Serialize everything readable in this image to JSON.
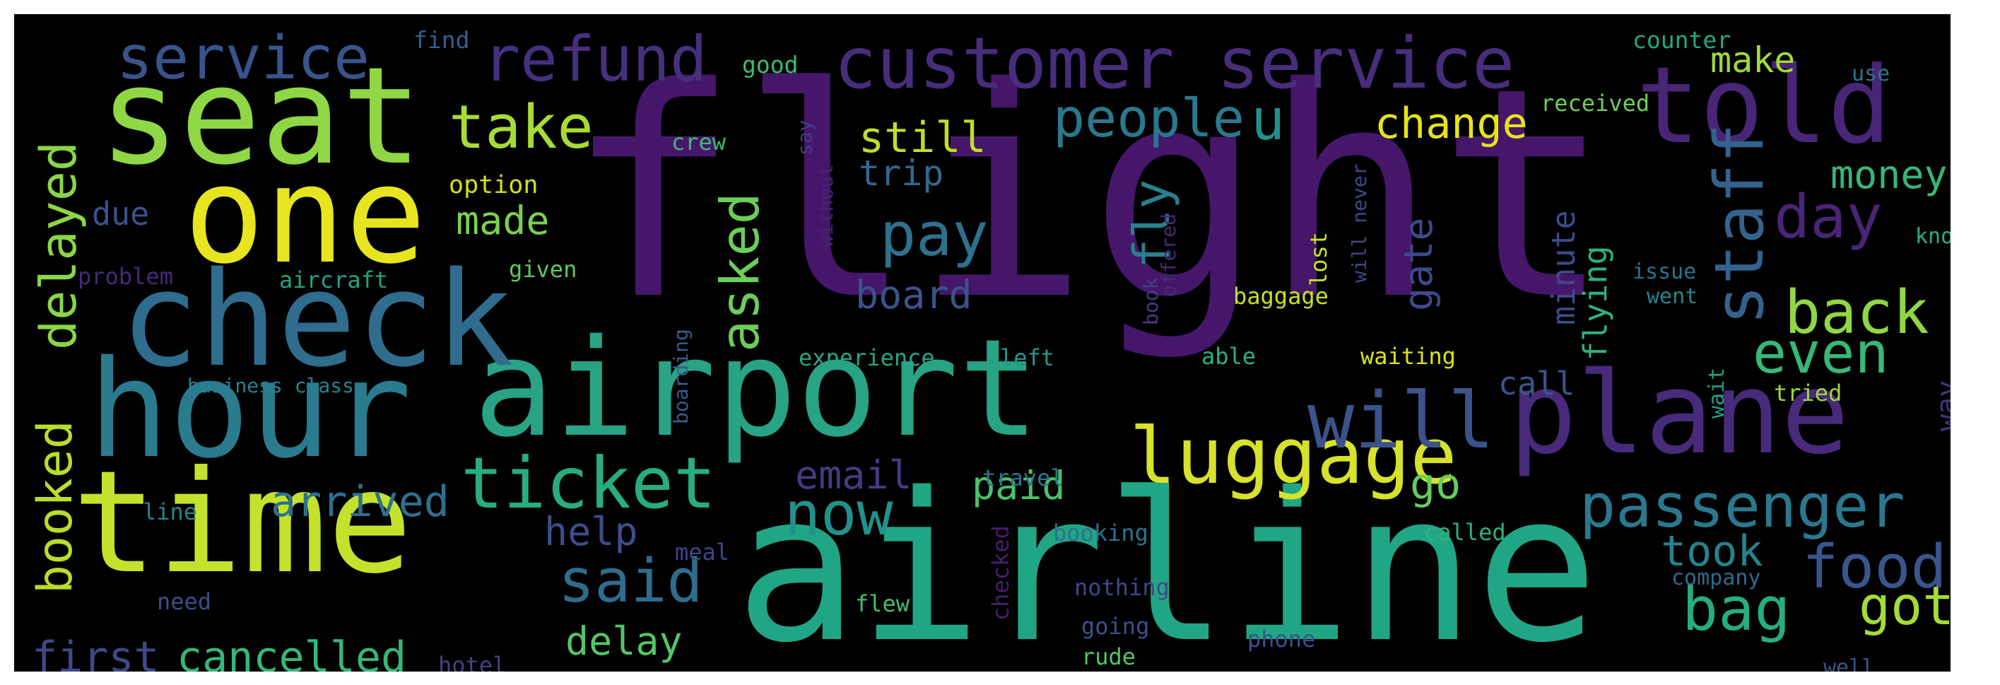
{
  "wordcloud": {
    "background": "#000000",
    "palette": "viridis",
    "words": [
      {
        "text": "flight",
        "color": "#46166b"
      },
      {
        "text": "airline",
        "color": "#21a685"
      },
      {
        "text": "time",
        "color": "#c3e22c"
      },
      {
        "text": "hour",
        "color": "#2a7b8e"
      },
      {
        "text": "airport",
        "color": "#28a384"
      },
      {
        "text": "seat",
        "color": "#8fd744"
      },
      {
        "text": "check",
        "color": "#2f6c8e"
      },
      {
        "text": "one",
        "color": "#e6e51f"
      },
      {
        "text": "plane",
        "color": "#472a7a"
      },
      {
        "text": "told",
        "color": "#482576"
      },
      {
        "text": "customer service",
        "color": "#472d7b"
      },
      {
        "text": "staff",
        "color": "#33628d"
      },
      {
        "text": "luggage",
        "color": "#d6e22b"
      },
      {
        "text": "ticket",
        "color": "#27ad81"
      },
      {
        "text": "passenger",
        "color": "#2a788e"
      },
      {
        "text": "refund",
        "color": "#46307e"
      },
      {
        "text": "service",
        "color": "#3a538b"
      },
      {
        "text": "delayed",
        "color": "#8bd646"
      },
      {
        "text": "booked",
        "color": "#b8de29"
      },
      {
        "text": "take",
        "color": "#a8db34"
      },
      {
        "text": "asked",
        "color": "#6ccd5a"
      },
      {
        "text": "pay",
        "color": "#2d718e"
      },
      {
        "text": "people",
        "color": "#2a788e"
      },
      {
        "text": "will",
        "color": "#3b528b"
      },
      {
        "text": "said",
        "color": "#2f6c8e"
      },
      {
        "text": "now",
        "color": "#20928c"
      },
      {
        "text": "bag",
        "color": "#26ad81"
      },
      {
        "text": "food",
        "color": "#39568c"
      },
      {
        "text": "got",
        "color": "#a5db36"
      },
      {
        "text": "day",
        "color": "#482576"
      },
      {
        "text": "back",
        "color": "#90d743"
      },
      {
        "text": "even",
        "color": "#37b878"
      },
      {
        "text": "arrived",
        "color": "#2e6f8e"
      },
      {
        "text": "cancelled",
        "color": "#35b779"
      },
      {
        "text": "first",
        "color": "#3e4989"
      },
      {
        "text": "fly",
        "color": "#27808e"
      },
      {
        "text": "u",
        "color": "#21918c"
      },
      {
        "text": "gate",
        "color": "#3f4889"
      },
      {
        "text": "still",
        "color": "#bddf26"
      },
      {
        "text": "change",
        "color": "#e5e419"
      },
      {
        "text": "board",
        "color": "#3b528b"
      },
      {
        "text": "email",
        "color": "#443a83"
      },
      {
        "text": "paid",
        "color": "#4ac16d"
      },
      {
        "text": "go",
        "color": "#65cb5e"
      },
      {
        "text": "help",
        "color": "#3d4e8a"
      },
      {
        "text": "delay",
        "color": "#54c568"
      },
      {
        "text": "took",
        "color": "#26828e"
      },
      {
        "text": "money",
        "color": "#35b779"
      },
      {
        "text": "make",
        "color": "#a0da39"
      },
      {
        "text": "made",
        "color": "#7ad151"
      },
      {
        "text": "trip",
        "color": "#31688e"
      },
      {
        "text": "call",
        "color": "#3a548c"
      },
      {
        "text": "minute",
        "color": "#3e4a89"
      },
      {
        "text": "flying",
        "color": "#2db27d"
      },
      {
        "text": "way",
        "color": "#46337e"
      },
      {
        "text": "due",
        "color": "#3b528b"
      },
      {
        "text": "option",
        "color": "#d2e21b"
      },
      {
        "text": "crew",
        "color": "#3aba76"
      },
      {
        "text": "good",
        "color": "#3dbc74"
      },
      {
        "text": "find",
        "color": "#355f8d"
      },
      {
        "text": "say",
        "color": "#433e85"
      },
      {
        "text": "received",
        "color": "#71cf57"
      },
      {
        "text": "counter",
        "color": "#22a884"
      },
      {
        "text": "use",
        "color": "#2c728e"
      },
      {
        "text": "know",
        "color": "#2ab07f"
      },
      {
        "text": "problem",
        "color": "#482979"
      },
      {
        "text": "aircraft",
        "color": "#20a386"
      },
      {
        "text": "given",
        "color": "#5ec962"
      },
      {
        "text": "without",
        "color": "#482173"
      },
      {
        "text": "issue",
        "color": "#2b748e"
      },
      {
        "text": "went",
        "color": "#25848e"
      },
      {
        "text": "baggage",
        "color": "#c8e020"
      },
      {
        "text": "book",
        "color": "#433d84"
      },
      {
        "text": "offered",
        "color": "#482878"
      },
      {
        "text": "lost",
        "color": "#cae11f"
      },
      {
        "text": "will never",
        "color": "#3f4788"
      },
      {
        "text": "experience",
        "color": "#22a785"
      },
      {
        "text": "left",
        "color": "#1f978b"
      },
      {
        "text": "able",
        "color": "#2db27d"
      },
      {
        "text": "waiting",
        "color": "#dde318"
      },
      {
        "text": "business class",
        "color": "#25838e"
      },
      {
        "text": "boarding",
        "color": "#365c8d"
      },
      {
        "text": "tried",
        "color": "#9dd93b"
      },
      {
        "text": "wait",
        "color": "#1fa088"
      },
      {
        "text": "line",
        "color": "#24868e"
      },
      {
        "text": "travel",
        "color": "#2a788e"
      },
      {
        "text": "meal",
        "color": "#404588"
      },
      {
        "text": "booking",
        "color": "#2c738e"
      },
      {
        "text": "called",
        "color": "#2db27d"
      },
      {
        "text": "company",
        "color": "#30698e"
      },
      {
        "text": "need",
        "color": "#3e4c8a"
      },
      {
        "text": "flew",
        "color": "#44bf70"
      },
      {
        "text": "checked",
        "color": "#481d6f"
      },
      {
        "text": "nothing",
        "color": "#3f4889"
      },
      {
        "text": "going",
        "color": "#3b518b"
      },
      {
        "text": "phone",
        "color": "#3b528b"
      },
      {
        "text": "rude",
        "color": "#52c569"
      },
      {
        "text": "hotel",
        "color": "#424186"
      },
      {
        "text": "well",
        "color": "#3b528b"
      }
    ]
  }
}
